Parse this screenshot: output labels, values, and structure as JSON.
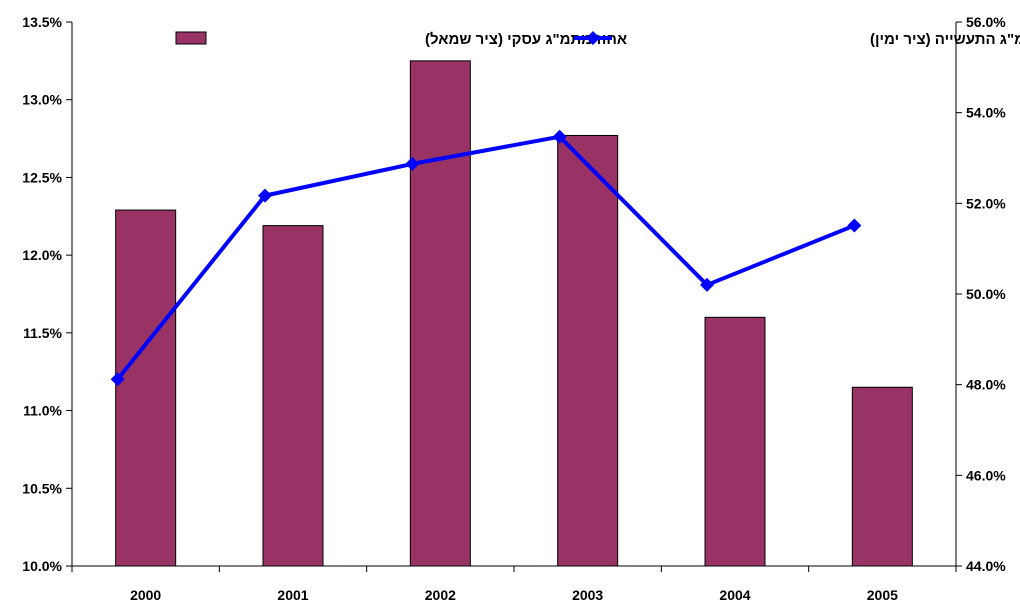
{
  "chart_data": {
    "type": "bar+line",
    "title": "",
    "xlabel": "",
    "ylabel_left": "",
    "ylabel_right": "",
    "categories": [
      "2000",
      "2001",
      "2002",
      "2003",
      "2004",
      "2005"
    ],
    "series": [
      {
        "name": "אחוז מתמ\"ג עסקי (ציר שמאל)",
        "type": "bar",
        "axis": "left",
        "color": "#993366",
        "values": [
          0.1229,
          0.1219,
          0.1325,
          0.1277,
          0.116,
          0.1115
        ]
      },
      {
        "name": "אחוז מתמ\"ג התעשייה (ציר ימין)",
        "type": "line",
        "axis": "right",
        "color": "#0000FF",
        "marker": "diamond",
        "values": [
          0.4812,
          0.5217,
          0.5287,
          0.5347,
          0.502,
          0.5151
        ]
      }
    ],
    "left_axis": {
      "min": 0.1,
      "max": 0.135,
      "ticks": [
        "10.0%",
        "10.5%",
        "11.0%",
        "11.5%",
        "12.0%",
        "12.5%",
        "13.0%",
        "13.5%"
      ]
    },
    "right_axis": {
      "min": 0.44,
      "max": 0.56,
      "ticks": [
        "44.0%",
        "46.0%",
        "48.0%",
        "50.0%",
        "52.0%",
        "54.0%",
        "56.0%"
      ]
    },
    "grid": false,
    "legend": "top"
  }
}
